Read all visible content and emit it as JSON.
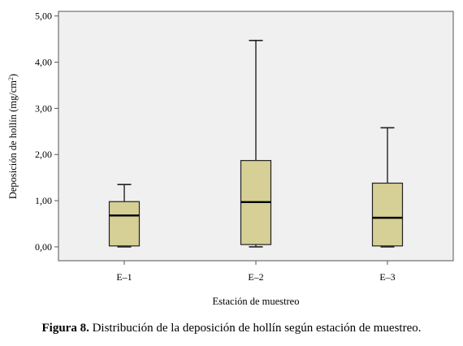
{
  "chart_data": {
    "type": "box",
    "xlabel": "Estación de muestreo",
    "ylabel_main": "Deposición de hollín (mg/cm",
    "ylabel_sup": "2",
    "ylabel_close": ")",
    "ylim": [
      -0.3,
      5.1
    ],
    "yticks": [
      "0,00",
      "1,00",
      "2,00",
      "3,00",
      "4,00",
      "5,00"
    ],
    "categories": [
      "E–1",
      "E–2",
      "E–3"
    ],
    "boxes": [
      {
        "min": 0.0,
        "q1": 0.02,
        "median": 0.68,
        "q3": 0.98,
        "max": 1.35
      },
      {
        "min": 0.0,
        "q1": 0.05,
        "median": 0.97,
        "q3": 1.87,
        "max": 4.47
      },
      {
        "min": 0.0,
        "q1": 0.02,
        "median": 0.63,
        "q3": 1.38,
        "max": 2.58
      }
    ],
    "grid": false,
    "colors": {
      "plot_bg": "#f0f0f0",
      "box_fill": "#d6cf96",
      "frame": "#555555",
      "ink": "#000000"
    }
  },
  "caption": {
    "label": "Figura 8.",
    "text": " Distribución de la deposición de hollín según estación de muestreo."
  }
}
